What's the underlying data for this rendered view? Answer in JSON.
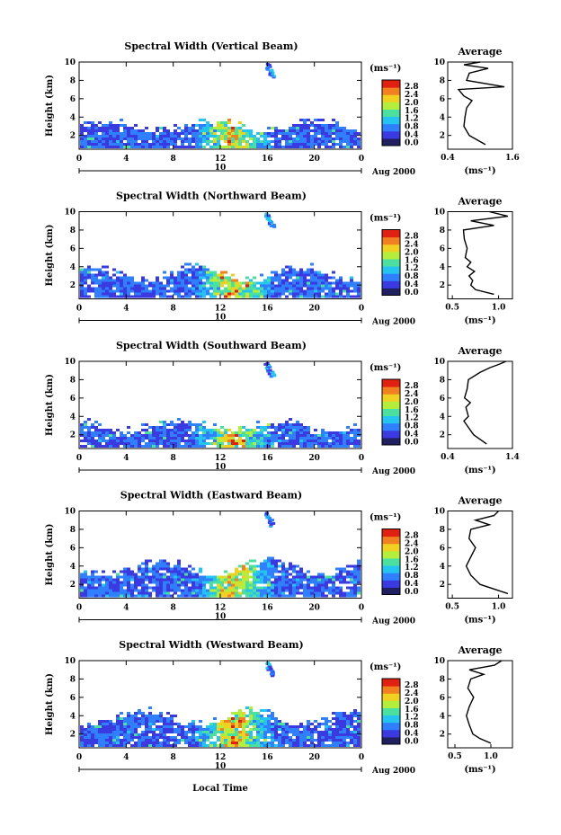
{
  "figure": {
    "xlabel": "Local Time",
    "date_label": "Aug 2000",
    "day_label": "10",
    "ylabel": "Height (km)",
    "unit_label": "(ms⁻¹)",
    "avg_title": "Average",
    "avg_xlabel": "(ms⁻¹)",
    "colorbar_ticks": [
      "0.0",
      "0.4",
      "0.8",
      "1.2",
      "1.6",
      "2.0",
      "2.4",
      "2.8"
    ],
    "colorbar_colors": [
      "#202060",
      "#3a3ae0",
      "#2f7fff",
      "#25c3f0",
      "#4be0a0",
      "#b4ee3c",
      "#f0d020",
      "#f08020",
      "#e02010"
    ],
    "x_ticks": [
      "0",
      "4",
      "8",
      "12",
      "16",
      "20",
      "0"
    ],
    "y_ticks": [
      "2",
      "4",
      "6",
      "8",
      "10"
    ]
  },
  "chart_data": [
    {
      "type": "heatmap",
      "title": "Spectral Width (Vertical Beam)",
      "xlabel": "Local Time",
      "ylabel": "Height (km)",
      "xlim": [
        0,
        24
      ],
      "ylim": [
        0.5,
        10
      ],
      "colorbar_range": [
        0.0,
        2.8
      ],
      "cloud_layer": {
        "x": [
          0,
          24
        ],
        "top_km": [
          2.5,
          3.5
        ]
      },
      "upper_echo": {
        "x": [
          15.5,
          16.5
        ],
        "y": [
          8.5,
          10
        ]
      },
      "profile": {
        "title": "Average",
        "xlim": [
          0.4,
          1.6
        ],
        "x_ticks": [
          "0.4",
          "1.6"
        ],
        "y": [
          1,
          2,
          3,
          4,
          5,
          5.8,
          6.3,
          7,
          7.3,
          8,
          8.8,
          9.3,
          9.7,
          10
        ],
        "x": [
          1.1,
          0.8,
          0.7,
          0.72,
          0.75,
          0.85,
          0.7,
          0.6,
          1.45,
          0.75,
          0.8,
          1.15,
          0.7,
          1.0
        ]
      }
    },
    {
      "type": "heatmap",
      "title": "Spectral Width (Northward Beam)",
      "xlabel": "Local Time",
      "ylabel": "Height (km)",
      "xlim": [
        0,
        24
      ],
      "ylim": [
        0.5,
        10
      ],
      "colorbar_range": [
        0.0,
        2.8
      ],
      "cloud_layer": {
        "x": [
          0,
          24
        ],
        "top_km": [
          2.5,
          4
        ]
      },
      "upper_echo": {
        "x": [
          15.5,
          16.5
        ],
        "y": [
          8.5,
          10
        ]
      },
      "profile": {
        "title": "Average",
        "xlim": [
          0.45,
          1.15
        ],
        "x_ticks": [
          "0.5",
          "1.0"
        ],
        "y": [
          1,
          1.5,
          2,
          2.5,
          3,
          3.5,
          4,
          4.5,
          5,
          6,
          7,
          8,
          8.5,
          9,
          9.5,
          10
        ],
        "x": [
          0.95,
          0.75,
          0.7,
          0.72,
          0.68,
          0.74,
          0.66,
          0.7,
          0.64,
          0.66,
          0.63,
          0.62,
          0.95,
          0.7,
          1.1,
          0.9
        ]
      }
    },
    {
      "type": "heatmap",
      "title": "Spectral Width (Southward Beam)",
      "xlabel": "Local Time",
      "ylabel": "Height (km)",
      "xlim": [
        0,
        24
      ],
      "ylim": [
        0.5,
        10
      ],
      "colorbar_range": [
        0.0,
        2.8
      ],
      "cloud_layer": {
        "x": [
          0,
          24
        ],
        "top_km": [
          2.5,
          3.5
        ]
      },
      "upper_echo": {
        "x": [
          15.5,
          16.5
        ],
        "y": [
          8.5,
          10
        ]
      },
      "profile": {
        "title": "Average",
        "xlim": [
          0.4,
          1.4
        ],
        "x_ticks": [
          "0.4",
          "1.4"
        ],
        "y": [
          1,
          2,
          3,
          3.5,
          4,
          5,
          5.5,
          6,
          7,
          8,
          8.8,
          9.3,
          9.7,
          10
        ],
        "x": [
          1.0,
          0.8,
          0.7,
          0.65,
          0.72,
          0.68,
          0.75,
          0.66,
          0.7,
          0.72,
          0.9,
          1.05,
          1.2,
          1.3
        ]
      }
    },
    {
      "type": "heatmap",
      "title": "Spectral Width (Eastward Beam)",
      "xlabel": "Local Time",
      "ylabel": "Height (km)",
      "xlim": [
        0,
        24
      ],
      "ylim": [
        0.5,
        10
      ],
      "colorbar_range": [
        0.0,
        2.8
      ],
      "cloud_layer": {
        "x": [
          0,
          24
        ],
        "top_km": [
          3,
          4.5
        ]
      },
      "upper_echo": {
        "x": [
          15.5,
          16.5
        ],
        "y": [
          8.5,
          10
        ]
      },
      "profile": {
        "title": "Average",
        "xlim": [
          0.45,
          1.15
        ],
        "x_ticks": [
          "0.5",
          "1.0"
        ],
        "y": [
          1,
          1.5,
          2,
          3,
          4,
          5,
          6,
          7,
          8,
          8.5,
          9,
          9.5,
          10
        ],
        "x": [
          1.1,
          0.95,
          0.8,
          0.7,
          0.65,
          0.7,
          0.75,
          0.68,
          0.7,
          0.9,
          0.75,
          0.95,
          1.0
        ]
      }
    },
    {
      "type": "heatmap",
      "title": "Spectral Width (Westward Beam)",
      "xlabel": "Local Time",
      "ylabel": "Height (km)",
      "xlim": [
        0,
        24
      ],
      "ylim": [
        0.5,
        10
      ],
      "colorbar_range": [
        0.0,
        2.8
      ],
      "cloud_layer": {
        "x": [
          0,
          24
        ],
        "top_km": [
          3,
          4.5
        ]
      },
      "upper_echo": {
        "x": [
          15.5,
          16.5
        ],
        "y": [
          8.5,
          10
        ]
      },
      "profile": {
        "title": "Average",
        "xlim": [
          0.4,
          1.3
        ],
        "x_ticks": [
          "0.5",
          "1.0"
        ],
        "y": [
          1,
          1.5,
          2,
          3,
          4,
          5,
          6,
          7,
          8,
          8.5,
          9,
          9.5,
          10
        ],
        "x": [
          1.0,
          0.85,
          0.75,
          0.7,
          0.66,
          0.7,
          0.76,
          0.68,
          0.72,
          0.9,
          0.7,
          1.05,
          1.15
        ]
      }
    }
  ]
}
